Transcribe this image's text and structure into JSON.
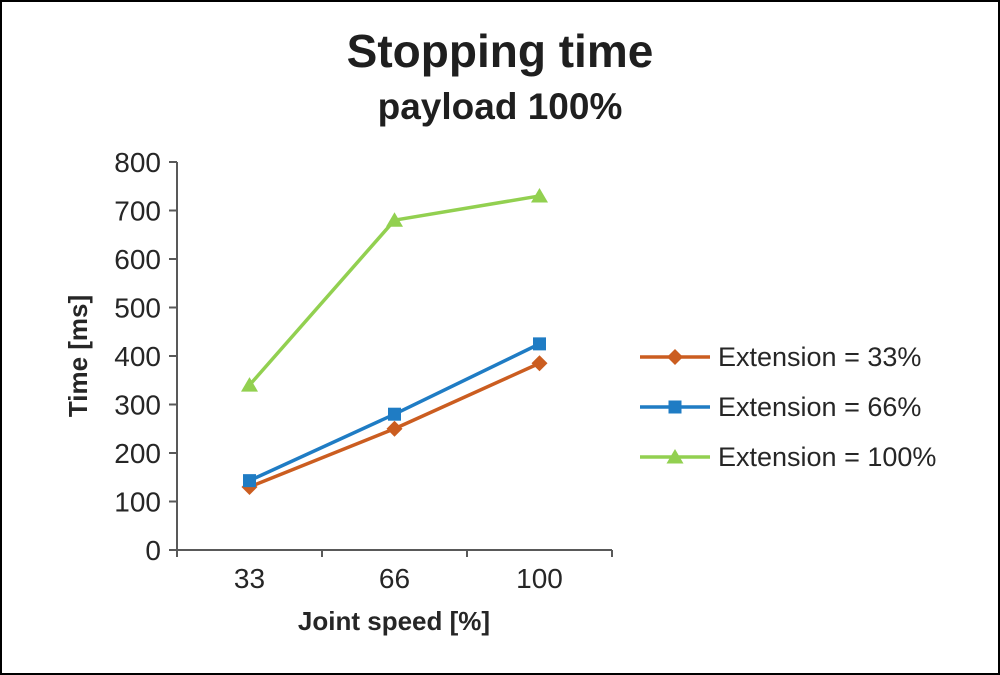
{
  "chart_data": {
    "type": "line",
    "title": "Stopping time",
    "subtitle": "payload 100%",
    "xlabel": "Joint speed [%]",
    "ylabel": "Time [ms]",
    "categories": [
      "33",
      "66",
      "100"
    ],
    "ylim": [
      0,
      800
    ],
    "yticks": [
      0,
      100,
      200,
      300,
      400,
      500,
      600,
      700,
      800
    ],
    "grid": false,
    "legend_position": "right",
    "axis_color": "#595959",
    "text_color": "#262626",
    "series": [
      {
        "name": "Extension = 33%",
        "values": [
          130,
          250,
          385
        ],
        "color": "#CB5D20",
        "marker": "diamond"
      },
      {
        "name": "Extension = 66%",
        "values": [
          143,
          280,
          425
        ],
        "color": "#1F7CC4",
        "marker": "square"
      },
      {
        "name": "Extension = 100%",
        "values": [
          340,
          680,
          730
        ],
        "color": "#92D050",
        "marker": "triangle"
      }
    ]
  }
}
